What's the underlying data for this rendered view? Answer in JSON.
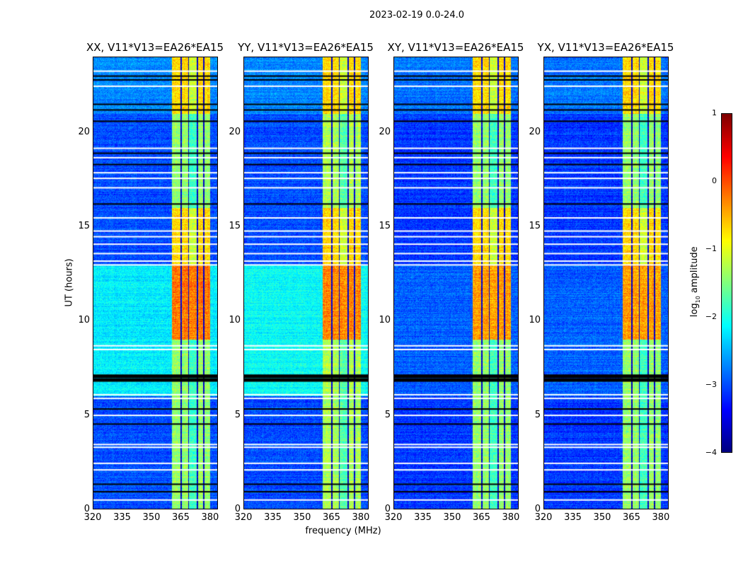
{
  "chart_data": {
    "type": "heatmap",
    "title": "2023-02-19 0.0-24.0",
    "xlabel": "frequency (MHz)",
    "ylabel": "UT (hours)",
    "xlim": [
      320,
      384
    ],
    "ylim": [
      0,
      24
    ],
    "xticks": [
      "320",
      "335",
      "350",
      "365",
      "380"
    ],
    "xtick_values": [
      320,
      335,
      350,
      365,
      380
    ],
    "yticks": [
      "0",
      "5",
      "10",
      "15",
      "20"
    ],
    "ytick_values": [
      0,
      5,
      10,
      15,
      20
    ],
    "panels": [
      {
        "title": "XX, V11*V13=EA26*EA15",
        "background_log_amp": -3.0,
        "midday_left_log_amp": -2.2,
        "band_log_amp": -1.4,
        "band_peak_log_amp": -0.2
      },
      {
        "title": "YY, V11*V13=EA26*EA15",
        "background_log_amp": -3.0,
        "midday_left_log_amp": -2.1,
        "band_log_amp": -1.3,
        "band_peak_log_amp": -0.3
      },
      {
        "title": "XY, V11*V13=EA26*EA15",
        "background_log_amp": -3.1,
        "midday_left_log_amp": -2.9,
        "band_log_amp": -1.4,
        "band_peak_log_amp": -0.4
      },
      {
        "title": "YX, V11*V13=EA26*EA15",
        "background_log_amp": -3.1,
        "midday_left_log_amp": -2.9,
        "band_log_amp": -1.4,
        "band_peak_log_amp": -0.4
      }
    ],
    "rfi_band_mhz": [
      360.5,
      380
    ],
    "subband_gaps_mhz": [
      365,
      369,
      373.5,
      377
    ],
    "strong_period_ut": [
      9,
      13
    ],
    "flagged_rows_white_ut": [
      0.5,
      2.1,
      2.45,
      3.3,
      3.45,
      5.0,
      5.9,
      6.1,
      8.5,
      8.7,
      13.0,
      13.2,
      13.6,
      14.1,
      14.5,
      14.8,
      15.5,
      17.1,
      17.6,
      17.9,
      18.7,
      19.2,
      22.5,
      23.3
    ],
    "flagged_rows_black_ut": [
      0.9,
      1.3,
      4.5,
      5.3,
      6.9,
      7.1,
      16.2,
      18.3,
      18.9,
      20.6,
      21.2,
      21.5,
      22.8,
      23.0
    ],
    "colorbar": {
      "label": "log10 amplitude",
      "range": [
        -4,
        1
      ],
      "ticks": [
        "1",
        "0",
        "−1",
        "−2",
        "−3",
        "−4"
      ],
      "tick_values": [
        1,
        0,
        -1,
        -2,
        -3,
        -4
      ],
      "colormap": "jet"
    }
  }
}
